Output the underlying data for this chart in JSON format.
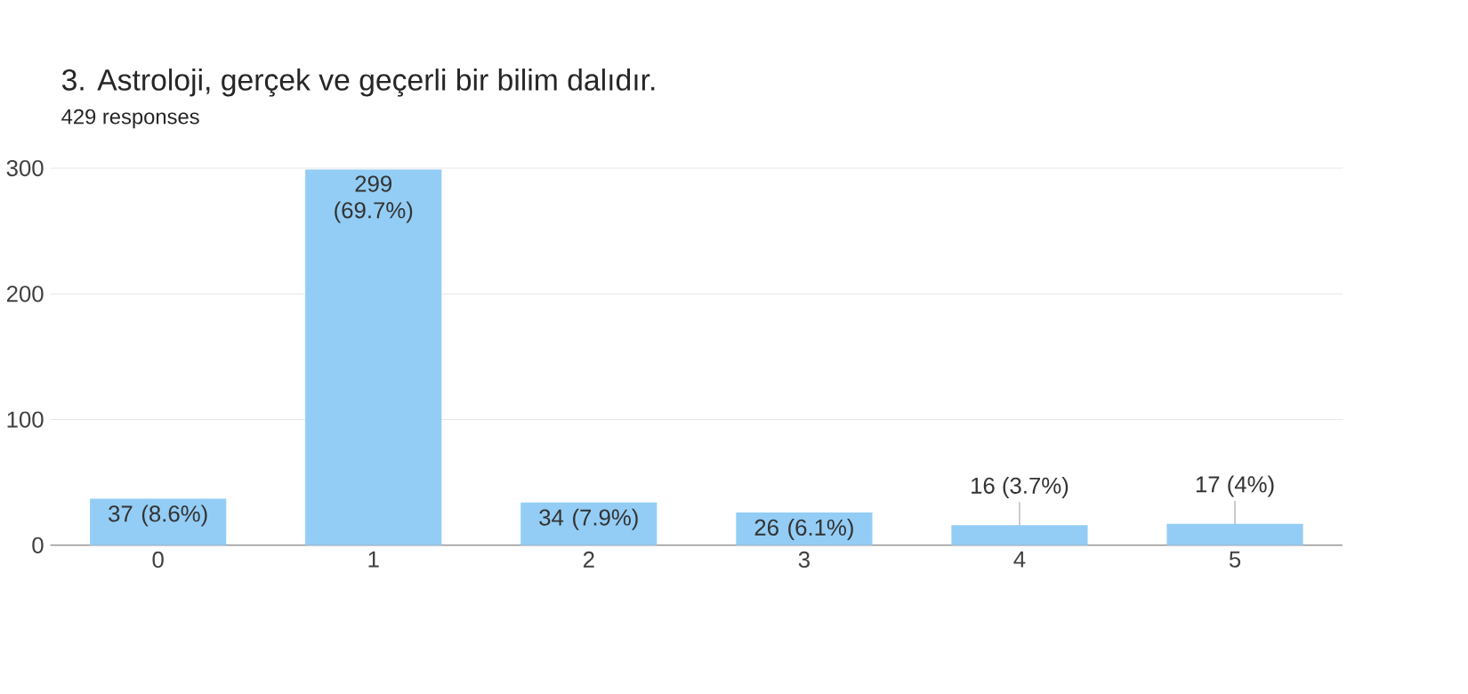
{
  "chart_data": {
    "type": "bar",
    "title": "3. Astroloji, gerçek ve geçerli bir bilim dalıdır.",
    "subtitle": "429 responses",
    "categories": [
      "0",
      "1",
      "2",
      "3",
      "4",
      "5"
    ],
    "values": [
      37,
      299,
      34,
      26,
      16,
      17
    ],
    "value_labels": [
      "37 (8.6%)",
      "299 (69.7%)",
      "34 (7.9%)",
      "26 (6.1%)",
      "16 (3.7%)",
      "17 (4%)"
    ],
    "color": "#93cdf5",
    "ylim": [
      0,
      300
    ],
    "yticks": [
      0,
      100,
      200,
      300
    ],
    "grid": "y"
  }
}
